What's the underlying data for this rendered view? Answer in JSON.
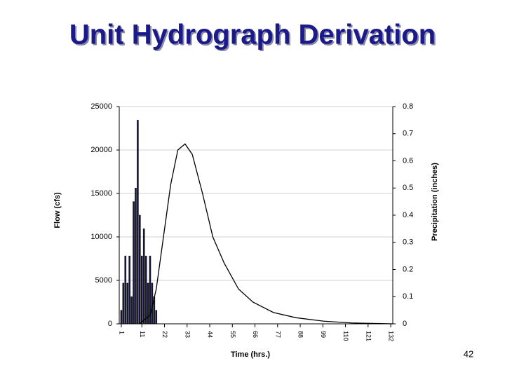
{
  "chart_data": {
    "type": "bar-line",
    "title": "Unit Hydrograph Derivation",
    "x_label": "Time (hrs.)",
    "y_label": "Flow (cfs)",
    "y2_label": "Precipitation (inches)",
    "page_number": "42",
    "xlim": [
      0,
      133
    ],
    "xticks": [
      1,
      11,
      22,
      33,
      44,
      55,
      66,
      77,
      88,
      99,
      110,
      121,
      132
    ],
    "ylim": [
      0,
      25000
    ],
    "yticks": [
      0,
      5000,
      10000,
      15000,
      20000,
      25000
    ],
    "y2lim": [
      0,
      0.8
    ],
    "y2ticks": [
      0,
      0.1,
      0.2,
      0.3,
      0.4,
      0.5,
      0.6,
      0.7,
      0.8
    ],
    "series": [
      {
        "name": "Precipitation",
        "kind": "bar",
        "axis": "y2",
        "color": "#1a1a40",
        "x": [
          1,
          2,
          3,
          4,
          5,
          6,
          7,
          8,
          9,
          10,
          11,
          12,
          13,
          14,
          15,
          16,
          17,
          18
        ],
        "values": [
          0.05,
          0.15,
          0.25,
          0.15,
          0.25,
          0.1,
          0.45,
          0.5,
          0.75,
          0.4,
          0.25,
          0.35,
          0.25,
          0.15,
          0.25,
          0.15,
          0.1,
          0.05
        ]
      },
      {
        "name": "Flow",
        "kind": "line",
        "color": "#000000",
        "x": [
          10,
          15,
          18,
          21.5,
          25,
          28.5,
          32,
          35.5,
          40.5,
          45.5,
          51,
          58,
          65,
          75,
          86,
          99.5,
          113,
          133
        ],
        "values": [
          0,
          1000,
          4000,
          10000,
          16000,
          20000,
          20700,
          19500,
          15000,
          10000,
          7000,
          4000,
          2500,
          1300,
          700,
          300,
          100,
          0
        ]
      }
    ]
  }
}
